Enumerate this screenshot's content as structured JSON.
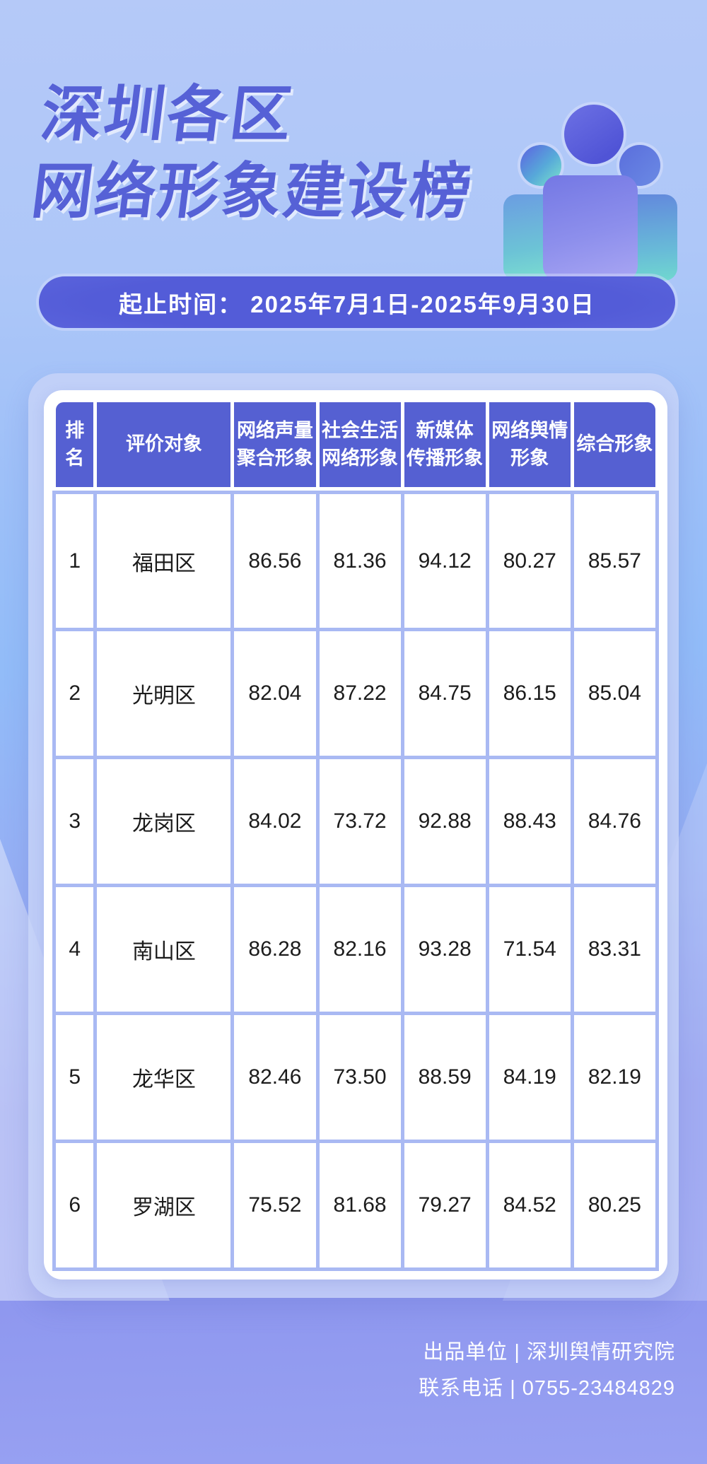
{
  "title": {
    "line1": "深圳各区",
    "line2": "网络形象建设榜"
  },
  "banner": {
    "text": "起止时间： 2025年7月1日-2025年9月30日"
  },
  "icons": {
    "people_group": "three-person-group-icon"
  },
  "colors": {
    "title": "#5661d6",
    "banner_bg": "#565fd8",
    "header_bg": "#5560d2",
    "cell_border": "#a9b9f3",
    "panel_bg": "#c7d3f8",
    "bg_top": "#b5c9f8",
    "bg_bottom": "#98a1f2",
    "footer_text": "#ffffff"
  },
  "table": {
    "columns": [
      {
        "line1": "排名"
      },
      {
        "line1": "评价对象"
      },
      {
        "line1": "网络声量",
        "line2": "聚合形象"
      },
      {
        "line1": "社会生活",
        "line2": "网络形象"
      },
      {
        "line1": "新媒体",
        "line2": "传播形象"
      },
      {
        "line1": "网络舆情",
        "line2": "形象"
      },
      {
        "line1": "综合形象"
      }
    ],
    "rows": [
      {
        "rank": "1",
        "name": "福田区",
        "scores": [
          "86.56",
          "81.36",
          "94.12",
          "80.27",
          "85.57"
        ]
      },
      {
        "rank": "2",
        "name": "光明区",
        "scores": [
          "82.04",
          "87.22",
          "84.75",
          "86.15",
          "85.04"
        ]
      },
      {
        "rank": "3",
        "name": "龙岗区",
        "scores": [
          "84.02",
          "73.72",
          "92.88",
          "88.43",
          "84.76"
        ]
      },
      {
        "rank": "4",
        "name": "南山区",
        "scores": [
          "86.28",
          "82.16",
          "93.28",
          "71.54",
          "83.31"
        ]
      },
      {
        "rank": "5",
        "name": "龙华区",
        "scores": [
          "82.46",
          "73.50",
          "88.59",
          "84.19",
          "82.19"
        ]
      },
      {
        "rank": "6",
        "name": "罗湖区",
        "scores": [
          "75.52",
          "81.68",
          "79.27",
          "84.52",
          "80.25"
        ]
      }
    ]
  },
  "footer": {
    "line1": "出品单位 | 深圳舆情研究院",
    "line2": "联系电话 | 0755-23484829"
  },
  "chart_data": {
    "type": "table",
    "title": "深圳各区网络形象建设榜",
    "period": "2025年7月1日-2025年9月30日",
    "columns": [
      "排名",
      "评价对象",
      "网络声量聚合形象",
      "社会生活网络形象",
      "新媒体传播形象",
      "网络舆情形象",
      "综合形象"
    ],
    "rows": [
      [
        1,
        "福田区",
        86.56,
        81.36,
        94.12,
        80.27,
        85.57
      ],
      [
        2,
        "光明区",
        82.04,
        87.22,
        84.75,
        86.15,
        85.04
      ],
      [
        3,
        "龙岗区",
        84.02,
        73.72,
        92.88,
        88.43,
        84.76
      ],
      [
        4,
        "南山区",
        86.28,
        82.16,
        93.28,
        71.54,
        83.31
      ],
      [
        5,
        "龙华区",
        82.46,
        73.5,
        88.59,
        84.19,
        82.19
      ],
      [
        6,
        "罗湖区",
        75.52,
        81.68,
        79.27,
        84.52,
        80.25
      ]
    ]
  }
}
